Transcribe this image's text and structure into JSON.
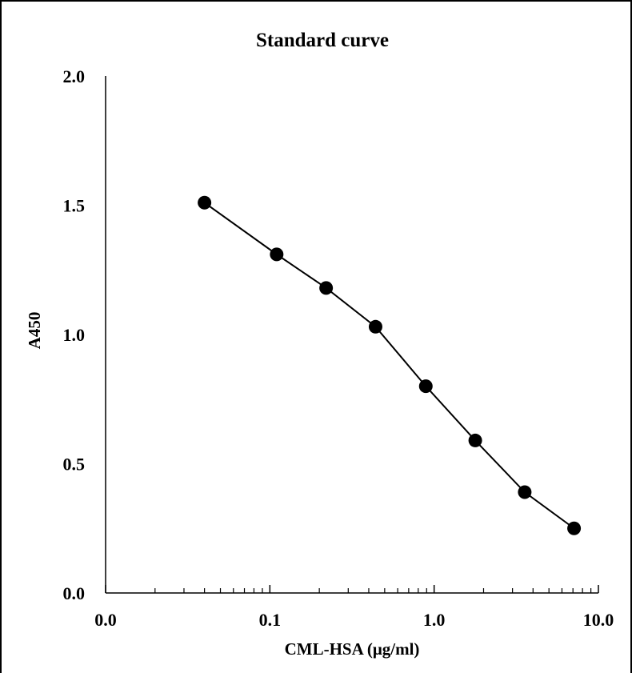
{
  "chart_data": {
    "type": "line",
    "title": "Standard curve",
    "xlabel": "CML-HSA (μg/ml)",
    "ylabel": "A450",
    "x_scale": "log",
    "xlim": [
      0.01,
      10
    ],
    "ylim": [
      0,
      2
    ],
    "x_ticks": [
      {
        "value": 0.01,
        "label": "0.0"
      },
      {
        "value": 0.1,
        "label": "0.1"
      },
      {
        "value": 1,
        "label": "1.0"
      },
      {
        "value": 10,
        "label": "10.0"
      }
    ],
    "y_ticks": [
      {
        "value": 0,
        "label": "0.0"
      },
      {
        "value": 0.5,
        "label": "0.5"
      },
      {
        "value": 1.0,
        "label": "1.0"
      },
      {
        "value": 1.5,
        "label": "1.5"
      },
      {
        "value": 2.0,
        "label": "2.0"
      }
    ],
    "grid": false,
    "legend": "none",
    "series": [
      {
        "color": "#000000",
        "marker": "circle",
        "x": [
          0.04,
          0.11,
          0.22,
          0.44,
          0.89,
          1.78,
          3.56,
          7.11
        ],
        "y": [
          1.51,
          1.31,
          1.18,
          1.03,
          0.8,
          0.59,
          0.39,
          0.25
        ]
      }
    ]
  }
}
